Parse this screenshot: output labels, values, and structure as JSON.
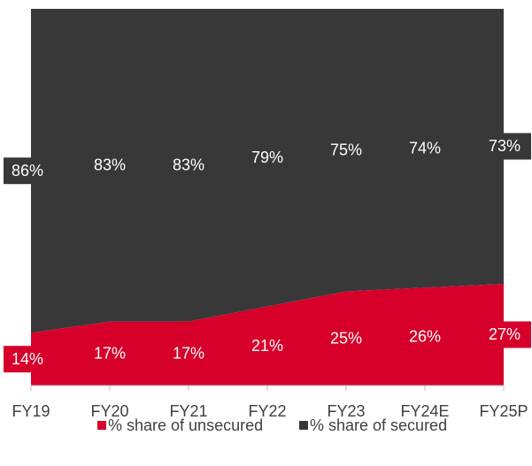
{
  "chart_data": {
    "type": "stacked-area-100",
    "categories": [
      "FY19",
      "FY20",
      "FY21",
      "FY22",
      "FY23",
      "FY24E",
      "FY25P"
    ],
    "series": [
      {
        "name": "% share of unsecured",
        "color": "#d6002a",
        "values": [
          14,
          17,
          17,
          21,
          25,
          26,
          27
        ],
        "value_labels": [
          "14%",
          "17%",
          "17%",
          "21%",
          "25%",
          "26%",
          "27%"
        ]
      },
      {
        "name": "% share of secured",
        "color": "#383838",
        "values": [
          86,
          83,
          83,
          79,
          75,
          74,
          73
        ],
        "value_labels": [
          "86%",
          "83%",
          "83%",
          "79%",
          "75%",
          "74%",
          "73%"
        ]
      }
    ],
    "ylim": [
      0,
      100
    ],
    "legend": "bottom"
  }
}
